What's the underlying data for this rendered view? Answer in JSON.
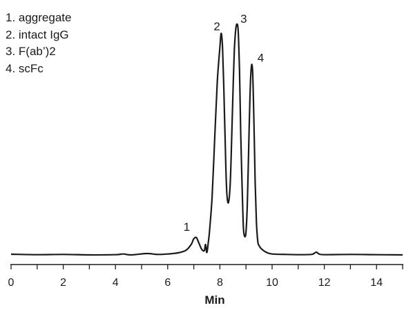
{
  "chart_data": {
    "type": "line",
    "title": "",
    "xlabel": "Min",
    "ylabel": "",
    "xlim": [
      0,
      15
    ],
    "xticks": [
      0,
      2,
      4,
      6,
      8,
      10,
      12,
      14
    ],
    "ylim": [
      0,
      1
    ],
    "grid": false,
    "legend": {
      "placement": "top-left",
      "entries": [
        "1. aggregate",
        "2. intact IgG",
        "3. F(ab’)2",
        "4. scFc"
      ]
    },
    "peak_labels": [
      {
        "text": "1",
        "x": 7.1,
        "y": 0.08
      },
      {
        "text": "2",
        "x": 8.15,
        "y": 0.95
      },
      {
        "text": "3",
        "x": 8.7,
        "y": 1.0
      },
      {
        "text": "4",
        "x": 9.3,
        "y": 0.82
      }
    ],
    "series": [
      {
        "x": [
          0.0,
          1.0,
          2.0,
          3.0,
          4.0,
          4.3,
          4.6,
          5.2,
          5.6,
          6.0,
          6.4,
          6.7,
          6.9,
          7.0,
          7.1,
          7.2,
          7.3,
          7.4,
          7.45,
          7.5,
          7.55,
          7.6,
          7.7,
          7.8,
          7.9,
          8.0,
          8.05,
          8.1,
          8.15,
          8.2,
          8.25,
          8.3,
          8.35,
          8.4,
          8.45,
          8.5,
          8.55,
          8.6,
          8.65,
          8.7,
          8.75,
          8.8,
          8.85,
          8.9,
          8.95,
          9.0,
          9.05,
          9.1,
          9.15,
          9.2,
          9.25,
          9.3,
          9.35,
          9.4,
          9.45,
          9.5,
          9.6,
          9.8,
          10.0,
          10.5,
          11.0,
          11.5,
          11.6,
          11.7,
          11.8,
          12.0,
          13.0,
          14.0,
          15.0
        ],
        "y": [
          0.003,
          0.001,
          0.002,
          0.0,
          0.001,
          0.004,
          0.0,
          0.006,
          0.002,
          0.004,
          0.009,
          0.02,
          0.045,
          0.07,
          0.075,
          0.05,
          0.025,
          0.018,
          0.045,
          0.01,
          0.05,
          0.1,
          0.25,
          0.5,
          0.75,
          0.9,
          0.96,
          0.9,
          0.72,
          0.5,
          0.3,
          0.23,
          0.24,
          0.32,
          0.5,
          0.7,
          0.88,
          0.97,
          1.0,
          0.97,
          0.8,
          0.52,
          0.3,
          0.12,
          0.08,
          0.1,
          0.22,
          0.45,
          0.68,
          0.81,
          0.8,
          0.6,
          0.32,
          0.14,
          0.06,
          0.04,
          0.025,
          0.01,
          0.004,
          0.002,
          0.001,
          0.002,
          0.006,
          0.012,
          0.004,
          0.001,
          0.002,
          0.001,
          0.0
        ]
      }
    ]
  }
}
